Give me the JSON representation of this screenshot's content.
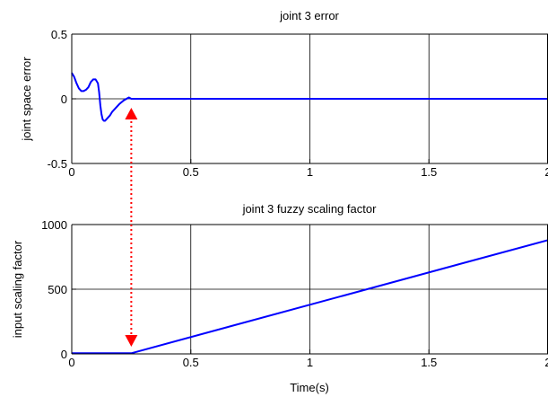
{
  "colors": {
    "series": "#0000ff",
    "annotation": "#ff0000",
    "axis": "#000000",
    "background": "#ffffff"
  },
  "chart_data": [
    {
      "type": "line",
      "title": "joint 3 error",
      "xlabel": "",
      "ylabel": "joint space error",
      "xlim": [
        0,
        2
      ],
      "ylim": [
        -0.5,
        0.5
      ],
      "xticks": [
        0,
        0.5,
        1,
        1.5,
        2
      ],
      "xtick_labels": [
        "0",
        "0.5",
        "1",
        "1.5",
        "2"
      ],
      "yticks": [
        -0.5,
        0,
        0.5
      ],
      "ytick_labels": [
        "-0.5",
        "0",
        "0.5"
      ],
      "grid": true,
      "series": [
        {
          "color": "#0000ff",
          "x": [
            0,
            0.01,
            0.02,
            0.03,
            0.04,
            0.05,
            0.06,
            0.07,
            0.08,
            0.09,
            0.1,
            0.11,
            0.115,
            0.12,
            0.125,
            0.13,
            0.135,
            0.14,
            0.15,
            0.16,
            0.17,
            0.18,
            0.2,
            0.22,
            0.24,
            0.25,
            0.26,
            0.3,
            0.5,
            1.0,
            1.5,
            2.0
          ],
          "y": [
            0.2,
            0.17,
            0.12,
            0.08,
            0.06,
            0.06,
            0.07,
            0.09,
            0.13,
            0.15,
            0.15,
            0.12,
            0.05,
            -0.05,
            -0.12,
            -0.16,
            -0.17,
            -0.17,
            -0.15,
            -0.13,
            -0.1,
            -0.08,
            -0.04,
            -0.01,
            0.01,
            0.0,
            0.0,
            0.0,
            0.0,
            0.0,
            0.0,
            0.0
          ]
        }
      ]
    },
    {
      "type": "line",
      "title": "joint 3 fuzzy scaling factor",
      "xlabel": "Time(s)",
      "ylabel": "input scaling factor",
      "xlim": [
        0,
        2
      ],
      "ylim": [
        0,
        1000
      ],
      "xticks": [
        0,
        0.5,
        1,
        1.5,
        2
      ],
      "xtick_labels": [
        "0",
        "0.5",
        "1",
        "1.5",
        "2"
      ],
      "yticks": [
        0,
        500,
        1000
      ],
      "ytick_labels": [
        "0",
        "500",
        "1000"
      ],
      "grid": true,
      "series": [
        {
          "color": "#0000ff",
          "x": [
            0,
            0.25,
            2.0
          ],
          "y": [
            5,
            5,
            880
          ]
        }
      ]
    }
  ],
  "annotation": {
    "type": "double-arrow",
    "style": "dotted",
    "color": "#ff0000",
    "x": 0.25
  }
}
